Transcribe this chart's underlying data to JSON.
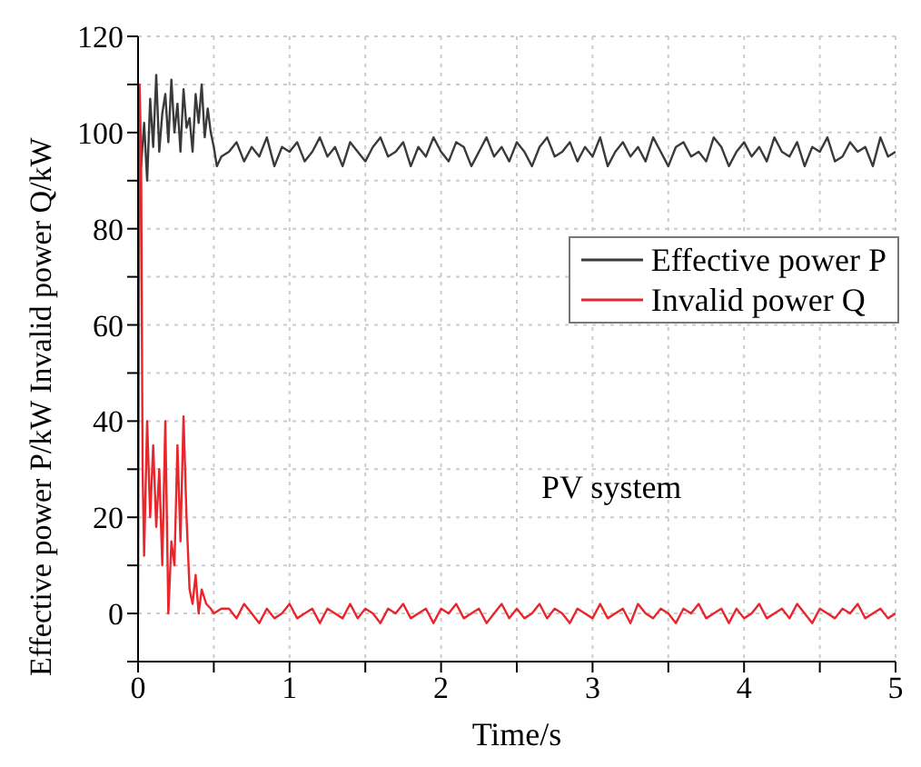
{
  "chart_data": {
    "type": "line",
    "xlabel": "Time/s",
    "ylabel": "Effective power P/kW Invalid power Q/kW",
    "xlim": [
      0,
      5
    ],
    "ylim": [
      -10,
      120
    ],
    "xticks": [
      0,
      {
        "value": 0.5,
        "label": null
      },
      1,
      {
        "value": 1.5,
        "label": null
      },
      2,
      {
        "value": 2.5,
        "label": null
      },
      3,
      {
        "value": 3.5,
        "label": null
      },
      4,
      {
        "value": 4.5,
        "label": null
      },
      5
    ],
    "yticks": [
      {
        "value": -10,
        "label": null
      },
      0,
      {
        "value": 10,
        "label": null
      },
      20,
      {
        "value": 30,
        "label": null
      },
      40,
      {
        "value": 50,
        "label": null
      },
      60,
      {
        "value": 70,
        "label": null
      },
      80,
      {
        "value": 90,
        "label": null
      },
      100,
      {
        "value": 110,
        "label": null
      },
      120
    ],
    "grid": true,
    "legend": "right",
    "marker": "none",
    "line_style": "solid",
    "annotations": [
      "PV system"
    ],
    "series": [
      {
        "name": "Effective power P",
        "color": "#3a3a3a",
        "x": [
          0,
          0.02,
          0.04,
          0.06,
          0.08,
          0.1,
          0.12,
          0.14,
          0.16,
          0.18,
          0.2,
          0.22,
          0.24,
          0.26,
          0.28,
          0.3,
          0.32,
          0.34,
          0.36,
          0.38,
          0.4,
          0.42,
          0.44,
          0.46,
          0.48,
          0.5,
          0.52,
          0.55,
          0.6,
          0.65,
          0.7,
          0.75,
          0.8,
          0.85,
          0.9,
          0.95,
          1,
          1.05,
          1.1,
          1.15,
          1.2,
          1.25,
          1.3,
          1.35,
          1.4,
          1.45,
          1.5,
          1.55,
          1.6,
          1.65,
          1.7,
          1.75,
          1.8,
          1.85,
          1.9,
          1.95,
          2,
          2.05,
          2.1,
          2.15,
          2.2,
          2.25,
          2.3,
          2.35,
          2.4,
          2.45,
          2.5,
          2.55,
          2.6,
          2.65,
          2.7,
          2.75,
          2.8,
          2.85,
          2.9,
          2.95,
          3,
          3.05,
          3.1,
          3.15,
          3.2,
          3.25,
          3.3,
          3.35,
          3.4,
          3.45,
          3.5,
          3.55,
          3.6,
          3.65,
          3.7,
          3.75,
          3.8,
          3.85,
          3.9,
          3.95,
          4,
          4.05,
          4.1,
          4.15,
          4.2,
          4.25,
          4.3,
          4.35,
          4.4,
          4.45,
          4.5,
          4.55,
          4.6,
          4.65,
          4.7,
          4.75,
          4.8,
          4.85,
          4.9,
          4.95,
          5
        ],
        "values": [
          98,
          93,
          102,
          90,
          107,
          97,
          112,
          96,
          104,
          108,
          98,
          111,
          100,
          106,
          96,
          109,
          101,
          103,
          96,
          108,
          102,
          110,
          99,
          105,
          100,
          97,
          93,
          95,
          96,
          98,
          94,
          97,
          95,
          99,
          93,
          97,
          96,
          98,
          94,
          96,
          99,
          95,
          97,
          93,
          98,
          96,
          94,
          97,
          99,
          95,
          96,
          98,
          93,
          97,
          95,
          99,
          96,
          94,
          98,
          97,
          93,
          96,
          99,
          95,
          97,
          94,
          98,
          96,
          93,
          97,
          99,
          95,
          96,
          98,
          94,
          97,
          95,
          99,
          93,
          96,
          98,
          95,
          97,
          94,
          99,
          96,
          93,
          97,
          98,
          95,
          96,
          94,
          99,
          97,
          93,
          96,
          98,
          95,
          97,
          94,
          99,
          96,
          95,
          98,
          93,
          97,
          96,
          99,
          94,
          95,
          98,
          96,
          97,
          93,
          99,
          95,
          96
        ]
      },
      {
        "name": "Invalid power Q",
        "color": "#e8262b",
        "x": [
          0,
          0.01,
          0.02,
          0.03,
          0.04,
          0.06,
          0.08,
          0.1,
          0.12,
          0.14,
          0.16,
          0.18,
          0.2,
          0.22,
          0.24,
          0.26,
          0.28,
          0.3,
          0.32,
          0.34,
          0.36,
          0.38,
          0.4,
          0.42,
          0.45,
          0.48,
          0.5,
          0.55,
          0.6,
          0.65,
          0.7,
          0.75,
          0.8,
          0.85,
          0.9,
          0.95,
          1,
          1.05,
          1.1,
          1.15,
          1.2,
          1.25,
          1.3,
          1.35,
          1.4,
          1.45,
          1.5,
          1.55,
          1.6,
          1.65,
          1.7,
          1.75,
          1.8,
          1.85,
          1.9,
          1.95,
          2,
          2.05,
          2.1,
          2.15,
          2.2,
          2.25,
          2.3,
          2.35,
          2.4,
          2.45,
          2.5,
          2.55,
          2.6,
          2.65,
          2.7,
          2.75,
          2.8,
          2.85,
          2.9,
          2.95,
          3,
          3.05,
          3.1,
          3.15,
          3.2,
          3.25,
          3.3,
          3.35,
          3.4,
          3.45,
          3.5,
          3.55,
          3.6,
          3.65,
          3.7,
          3.75,
          3.8,
          3.85,
          3.9,
          3.95,
          4,
          4.05,
          4.1,
          4.15,
          4.2,
          4.25,
          4.3,
          4.35,
          4.4,
          4.45,
          4.5,
          4.55,
          4.6,
          4.65,
          4.7,
          4.75,
          4.8,
          4.85,
          4.9,
          4.95,
          5
        ],
        "values": [
          0,
          110,
          96,
          30,
          12,
          40,
          20,
          35,
          18,
          30,
          10,
          40,
          0,
          15,
          10,
          35,
          15,
          41,
          20,
          5,
          2,
          8,
          0,
          5,
          2,
          1,
          0,
          1,
          1,
          -1,
          2,
          0,
          -2,
          1,
          -1,
          0,
          2,
          -1,
          0,
          1,
          -2,
          1,
          0,
          -1,
          2,
          -1,
          1,
          0,
          -2,
          1,
          0,
          2,
          -1,
          0,
          1,
          -2,
          1,
          0,
          2,
          -1,
          0,
          1,
          -2,
          0,
          2,
          -1,
          1,
          -1,
          0,
          2,
          -1,
          1,
          0,
          -2,
          1,
          0,
          -1,
          2,
          -1,
          0,
          1,
          -2,
          2,
          0,
          -1,
          1,
          0,
          -2,
          1,
          0,
          2,
          -1,
          0,
          1,
          -2,
          1,
          -1,
          0,
          2,
          -1,
          0,
          1,
          -1,
          2,
          0,
          -2,
          1,
          0,
          -1,
          1,
          0,
          2,
          -1,
          0,
          1,
          -1,
          0
        ]
      }
    ]
  }
}
